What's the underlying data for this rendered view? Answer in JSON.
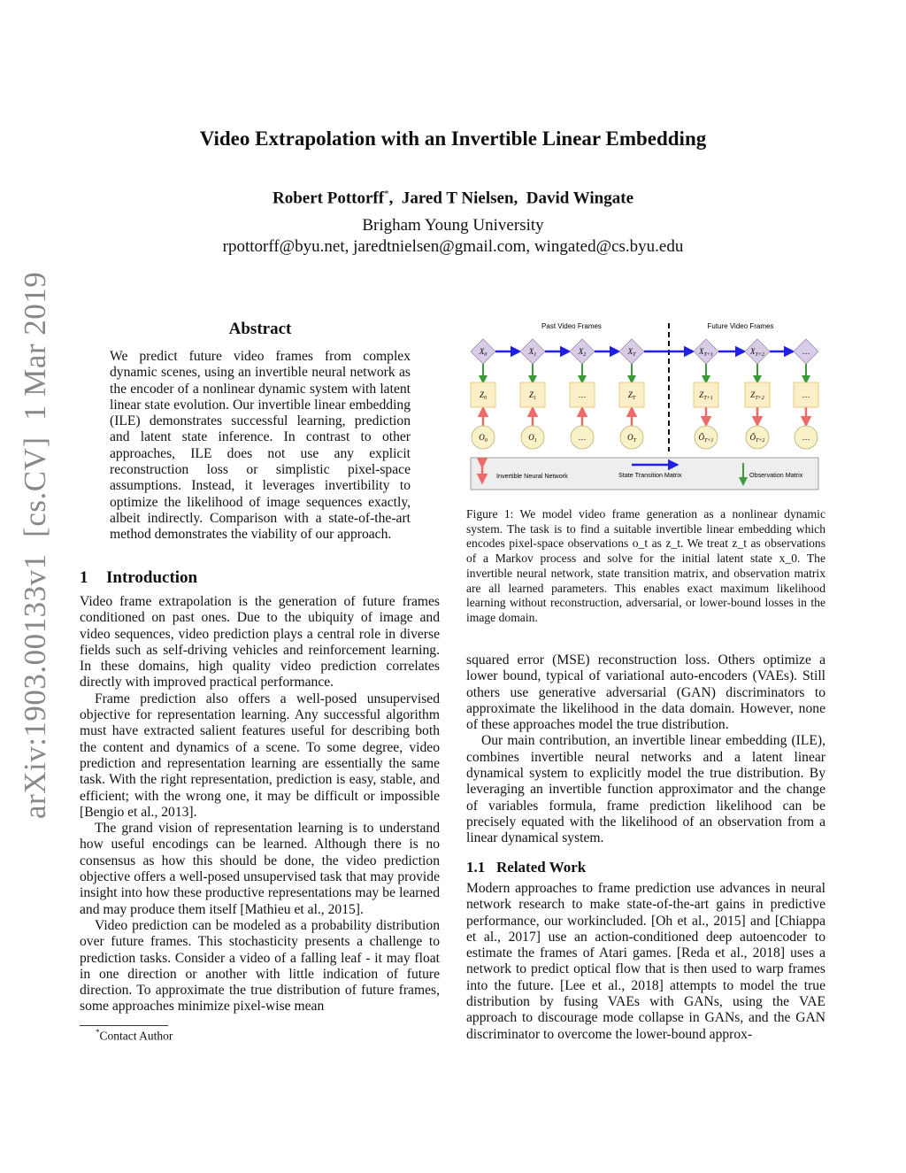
{
  "title": "Video Extrapolation with an Invertible Linear Embedding",
  "authors": [
    {
      "name": "Robert Pottorff",
      "mark": "*"
    },
    {
      "name": "Jared T Nielsen",
      "mark": ""
    },
    {
      "name": "David Wingate",
      "mark": ""
    }
  ],
  "affiliation": "Brigham Young University",
  "emails": "rpottorff@byu.net, jaredtnielsen@gmail.com, wingated@cs.byu.edu",
  "arxiv_stamp": "arXiv:1903.00133v1  [cs.CV]  1 Mar 2019",
  "abstract": {
    "heading": "Abstract",
    "text": "We predict future video frames from complex dynamic scenes, using an invertible neural network as the encoder of a nonlinear dynamic system with latent linear state evolution. Our invertible linear embedding (ILE) demonstrates successful learning, prediction and latent state inference. In contrast to other approaches, ILE does not use any explicit reconstruction loss or simplistic pixel-space assumptions. Instead, it leverages invertibility to optimize the likelihood of image sequences exactly, albeit indirectly. Comparison with a state-of-the-art method demonstrates the viability of our approach."
  },
  "intro": {
    "number": "1",
    "heading": "Introduction",
    "paragraphs": [
      "Video frame extrapolation is the generation of future frames conditioned on past ones. Due to the ubiquity of image and video sequences, video prediction plays a central role in diverse fields such as self-driving vehicles and reinforcement learning. In these domains, high quality video prediction correlates directly with improved practical performance.",
      "Frame prediction also offers a well-posed unsupervised objective for representation learning. Any successful algorithm must have extracted salient features useful for describing both the content and dynamics of a scene. To some degree, video prediction and representation learning are essentially the same task. With the right representation, prediction is easy, stable, and efficient; with the wrong one, it may be difficult or impossible [Bengio et al., 2013].",
      "The grand vision of representation learning is to understand how useful encodings can be learned. Although there is no consensus as how this should be done, the video prediction objective offers a well-posed unsupervised task that may provide insight into how these productive representations may be learned and may produce them itself [Mathieu et al., 2015].",
      "Video prediction can be modeled as a probability distribution over future frames. This stochasticity presents a challenge to prediction tasks. Consider a video of a falling leaf - it may float in one direction or another with little indication of future direction. To approximate the true distribution of future frames, some approaches minimize pixel-wise mean"
    ]
  },
  "footnote": {
    "mark": "*",
    "text": "Contact Author"
  },
  "figure": {
    "past_label": "Past Video Frames",
    "future_label": "Future Video Frames",
    "columns": [
      {
        "x": [
          "X",
          "0"
        ],
        "z": [
          "Z",
          "0"
        ],
        "o": [
          "O",
          "0"
        ],
        "future": false
      },
      {
        "x": [
          "X",
          "1"
        ],
        "z": [
          "Z",
          "1"
        ],
        "o": [
          "O",
          "1"
        ],
        "future": false
      },
      {
        "x": [
          "X",
          "2"
        ],
        "z": [
          "…",
          ""
        ],
        "o": [
          "…",
          ""
        ],
        "future": false
      },
      {
        "x": [
          "X",
          "T"
        ],
        "z": [
          "Z",
          "T"
        ],
        "o": [
          "O",
          "T"
        ],
        "future": false
      },
      {
        "x": [
          "X",
          "T+1"
        ],
        "z": [
          "Z",
          "T+1"
        ],
        "o": [
          "Õ",
          "T+1"
        ],
        "future": true
      },
      {
        "x": [
          "X",
          "T+2"
        ],
        "z": [
          "Z",
          "T+2"
        ],
        "o": [
          "Õ",
          "T+2"
        ],
        "future": true
      },
      {
        "x": [
          "…",
          ""
        ],
        "z": [
          "…",
          ""
        ],
        "o": [
          "…",
          ""
        ],
        "future": true
      }
    ],
    "legend": {
      "inn": "Invertible Neural Network",
      "stm": "State Transition Matrix",
      "obs": "Observation Matrix"
    },
    "colors": {
      "diamond": "#d8cce6",
      "square": "#fbefc8",
      "circle": "#f9f2c8",
      "transition": "#1f1fe6",
      "observation": "#3a9a3a",
      "inn": "#ec6a6a"
    },
    "caption": "Figure 1: We model video frame generation as a nonlinear dynamic system. The task is to find a suitable invertible linear embedding which encodes pixel-space observations o_t as z_t. We treat z_t as observations of a Markov process and solve for the initial latent state x_0. The invertible neural network, state transition matrix, and observation matrix are all learned parameters. This enables exact maximum likelihood learning without reconstruction, adversarial, or lower-bound losses in the image domain."
  },
  "right": {
    "paragraphs": [
      "squared error (MSE) reconstruction loss. Others optimize a lower bound, typical of variational auto-encoders (VAEs). Still others use generative adversarial (GAN) discriminators to approximate the likelihood in the data domain. However, none of these approaches model the true distribution.",
      "Our main contribution, an invertible linear embedding (ILE), combines invertible neural networks and a latent linear dynamical system to explicitly model the true distribution. By leveraging an invertible function approximator and the change of variables formula, frame prediction likelihood can be precisely equated with the likelihood of an observation from a linear dynamical system."
    ]
  },
  "related": {
    "number": "1.1",
    "heading": "Related Work",
    "text": "Modern approaches to frame prediction use advances in neural network research to make state-of-the-art gains in predictive performance, our workincluded. [Oh et al., 2015] and [Chiappa et al., 2017] use an action-conditioned deep autoencoder to estimate the frames of Atari games. [Reda et al., 2018] uses a network to predict optical flow that is then used to warp frames into the future. [Lee et al., 2018] attempts to model the true distribution by fusing VAEs with GANs, using the VAE approach to discourage mode collapse in GANs, and the GAN discriminator to overcome the lower-bound approx-"
  }
}
